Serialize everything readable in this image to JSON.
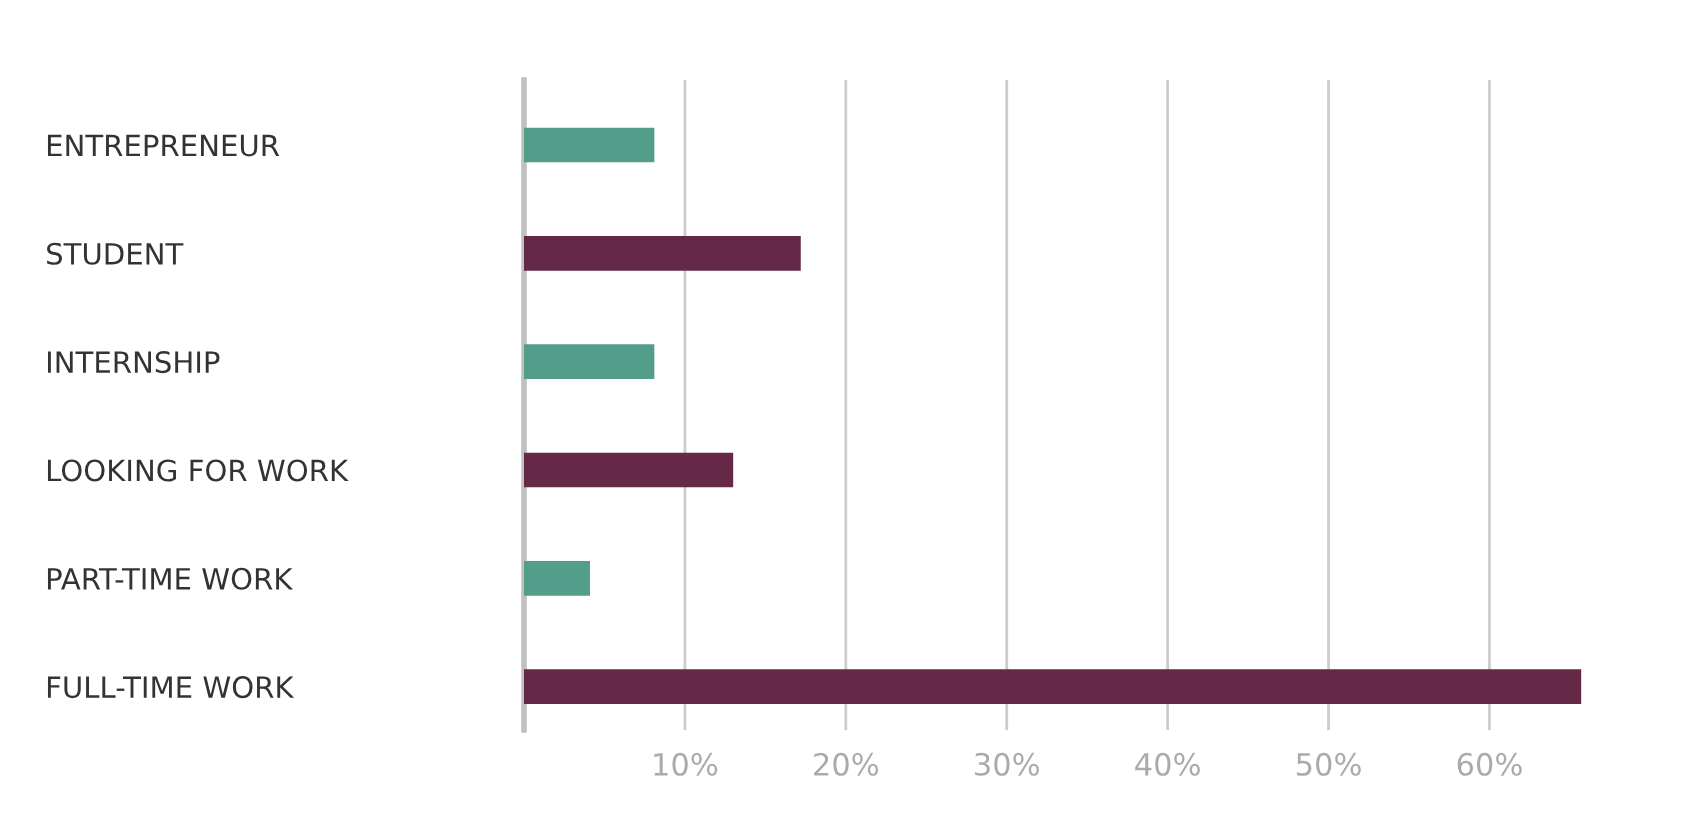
{
  "chart_data": {
    "type": "bar",
    "orientation": "horizontal",
    "categories": [
      "ENTREPRENEUR",
      "STUDENT",
      "INTERNSHIP",
      "LOOKING FOR WORK",
      "PART-TIME WORK",
      "FULL-TIME WORK"
    ],
    "values": [
      8.1,
      17.2,
      8.1,
      13,
      4.1,
      65.7
    ],
    "colors": [
      "#539e8b",
      "#652846",
      "#539e8b",
      "#652846",
      "#539e8b",
      "#652846"
    ],
    "xlim": [
      0,
      66
    ],
    "xticks": [
      {
        "value": 10,
        "label": "10%"
      },
      {
        "value": 20,
        "label": "20%"
      },
      {
        "value": 30,
        "label": "30%"
      },
      {
        "value": 40,
        "label": "40%"
      },
      {
        "value": 50,
        "label": "50%"
      },
      {
        "value": 60,
        "label": "60%"
      }
    ],
    "grid": "x"
  }
}
